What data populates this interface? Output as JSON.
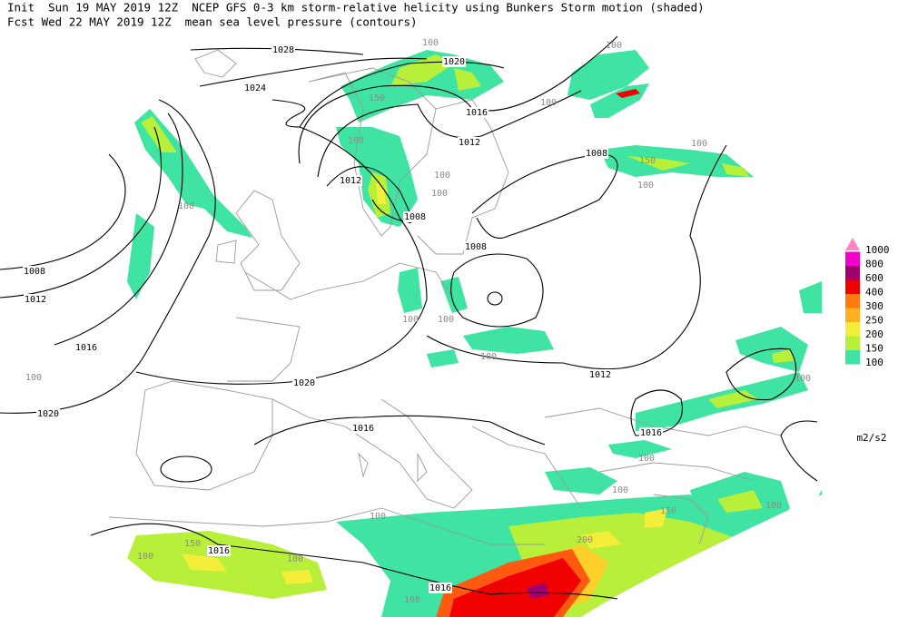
{
  "header": {
    "line1": "Init  Sun 19 MAY 2019 12Z  NCEP GFS 0-3 km storm-relative helicity using Bunkers Storm motion (shaded)",
    "line2": "Fcst Wed 22 MAY 2019 12Z  mean sea level pressure (contours)"
  },
  "legend": {
    "entries": [
      {
        "label": "1000",
        "color": "#ff86c6"
      },
      {
        "label": "800",
        "color": "#f000c8"
      },
      {
        "label": "600",
        "color": "#a0006e"
      },
      {
        "label": "400",
        "color": "#f00000"
      },
      {
        "label": "300",
        "color": "#ff7a10"
      },
      {
        "label": "250",
        "color": "#ffb020"
      },
      {
        "label": "200",
        "color": "#f2ee3a"
      },
      {
        "label": "150",
        "color": "#b8ef3a"
      },
      {
        "label": "100",
        "color": "#3fe3a2"
      }
    ],
    "units": "m2/s2"
  },
  "pressure_labels": [
    "1028",
    "1024",
    "1020",
    "1016",
    "1012",
    "1008",
    "1012",
    "1008",
    "1008",
    "1008",
    "1012",
    "1016",
    "1020",
    "1020",
    "1012",
    "1016",
    "1016",
    "1016",
    "1016"
  ],
  "helicity_labels": [
    "150",
    "100",
    "100",
    "100",
    "100",
    "100",
    "100",
    "100",
    "100",
    "150",
    "100",
    "100",
    "100",
    "100",
    "100",
    "100",
    "100",
    "100",
    "100",
    "100",
    "150",
    "200",
    "150",
    "100",
    "100",
    "100"
  ]
}
